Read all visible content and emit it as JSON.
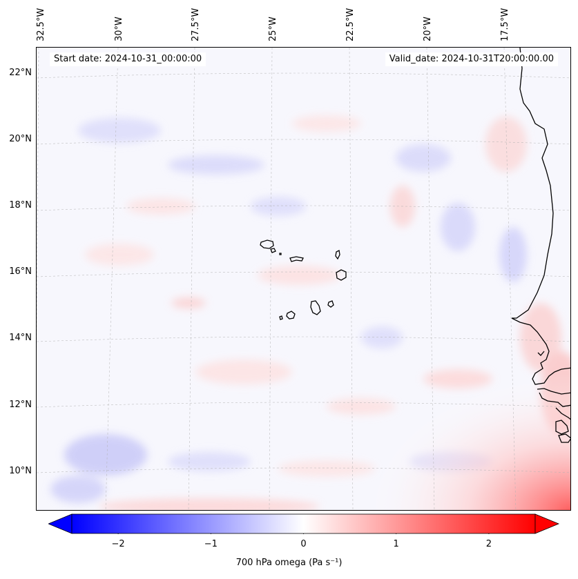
{
  "map": {
    "title_left": "Start date: 2024-10-31_00:00:00",
    "title_right": "Valid_date: 2024-10-31T20:00:00.00",
    "longitude_labels": [
      "32.5°W",
      "30°W",
      "27.5°W",
      "25°W",
      "22.5°W",
      "20°W",
      "17.5°W"
    ],
    "latitude_labels": [
      "22°N",
      "20°N",
      "18°N",
      "16°N",
      "14°N",
      "12°N",
      "10°N"
    ],
    "features": [
      "Cape Verde islands",
      "West African coastline"
    ]
  },
  "colorbar": {
    "label": "700 hPa omega (Pa s⁻¹)",
    "ticks": [
      "−2",
      "−1",
      "0",
      "1",
      "2"
    ],
    "tick_values": [
      -2,
      -1,
      0,
      1,
      2
    ],
    "range": [
      -2.5,
      2.5
    ],
    "colors": {
      "negative": "#0000ff",
      "zero": "#ffffff",
      "positive": "#ff0000"
    }
  }
}
